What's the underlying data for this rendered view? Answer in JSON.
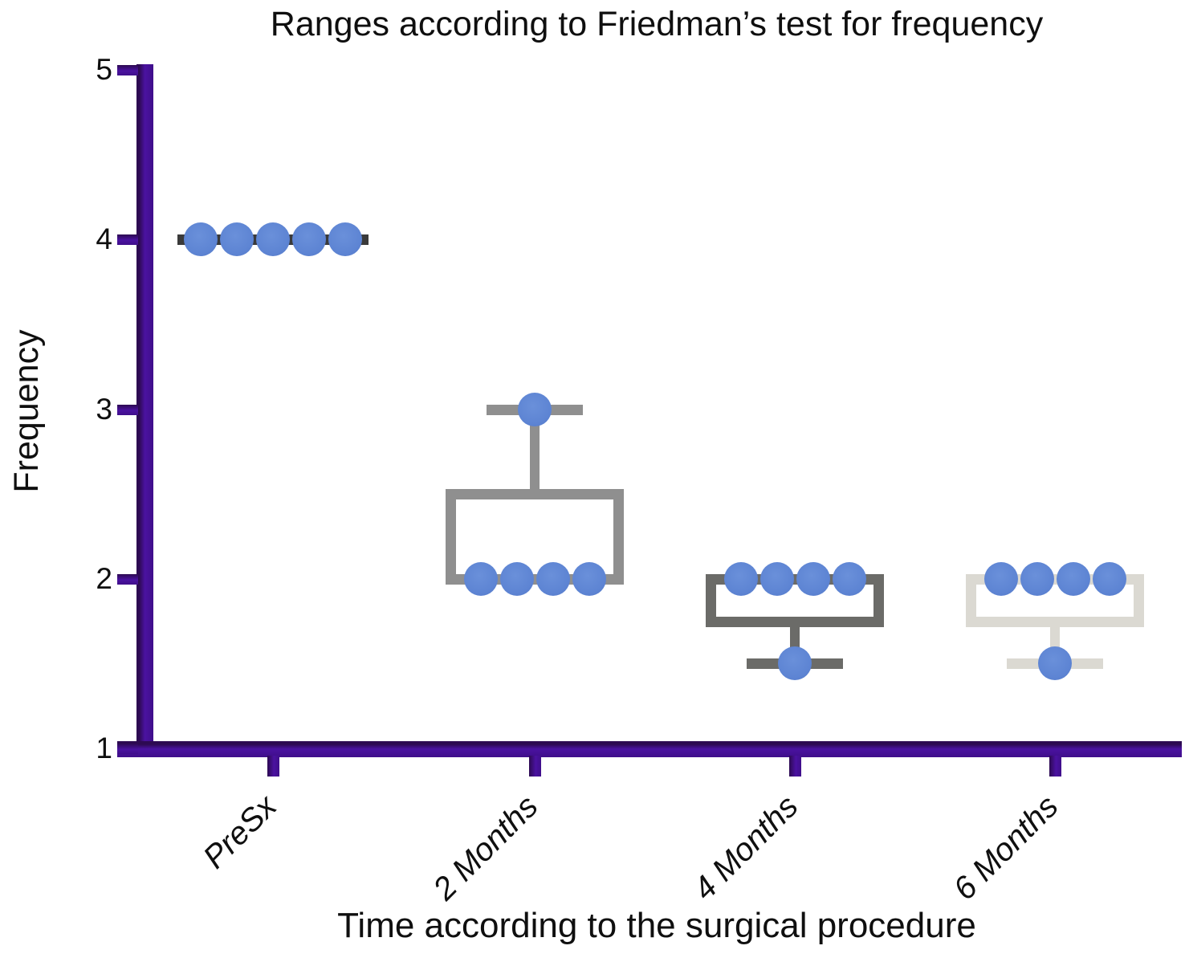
{
  "title": "Ranges according to Friedman’s test for frequency",
  "chart_data": {
    "type": "box-scatter",
    "title": "Ranges according to Friedman’s test for frequency",
    "xlabel": "Time according to the surgical procedure",
    "ylabel": "Frequency",
    "ylim": [
      1,
      5
    ],
    "y_ticks": [
      1,
      2,
      3,
      4,
      5
    ],
    "grid": false,
    "legend": false,
    "categories": [
      "PreSx",
      "2 Months",
      "4 Months",
      "6 Months"
    ],
    "groups": [
      {
        "name": "PreSx",
        "points": [
          4,
          4,
          4,
          4,
          4
        ],
        "median_line": 4,
        "box": null,
        "whisker_high": null,
        "whisker_low": null,
        "box_color": "#3a3a3a"
      },
      {
        "name": "2 Months",
        "points": [
          3,
          2,
          2,
          2,
          2
        ],
        "median_line": null,
        "box": {
          "q1": 2,
          "q3": 2.5
        },
        "whisker_high": 3,
        "whisker_low": null,
        "box_color": "#8f8f8f"
      },
      {
        "name": "4 Months",
        "points": [
          2,
          2,
          2,
          2,
          1.5
        ],
        "median_line": null,
        "box": {
          "q1": 1.75,
          "q3": 2
        },
        "whisker_high": null,
        "whisker_low": 1.5,
        "box_color": "#6b6b68"
      },
      {
        "name": "6 Months",
        "points": [
          2,
          2,
          2,
          2,
          1.5
        ],
        "median_line": null,
        "box": {
          "q1": 1.75,
          "q3": 2
        },
        "whisker_high": null,
        "whisker_low": 1.5,
        "box_color": "#dbd9d2"
      }
    ],
    "colors": {
      "axis": "#45108f",
      "dot": "#5d84d3",
      "text": "#111111"
    }
  }
}
